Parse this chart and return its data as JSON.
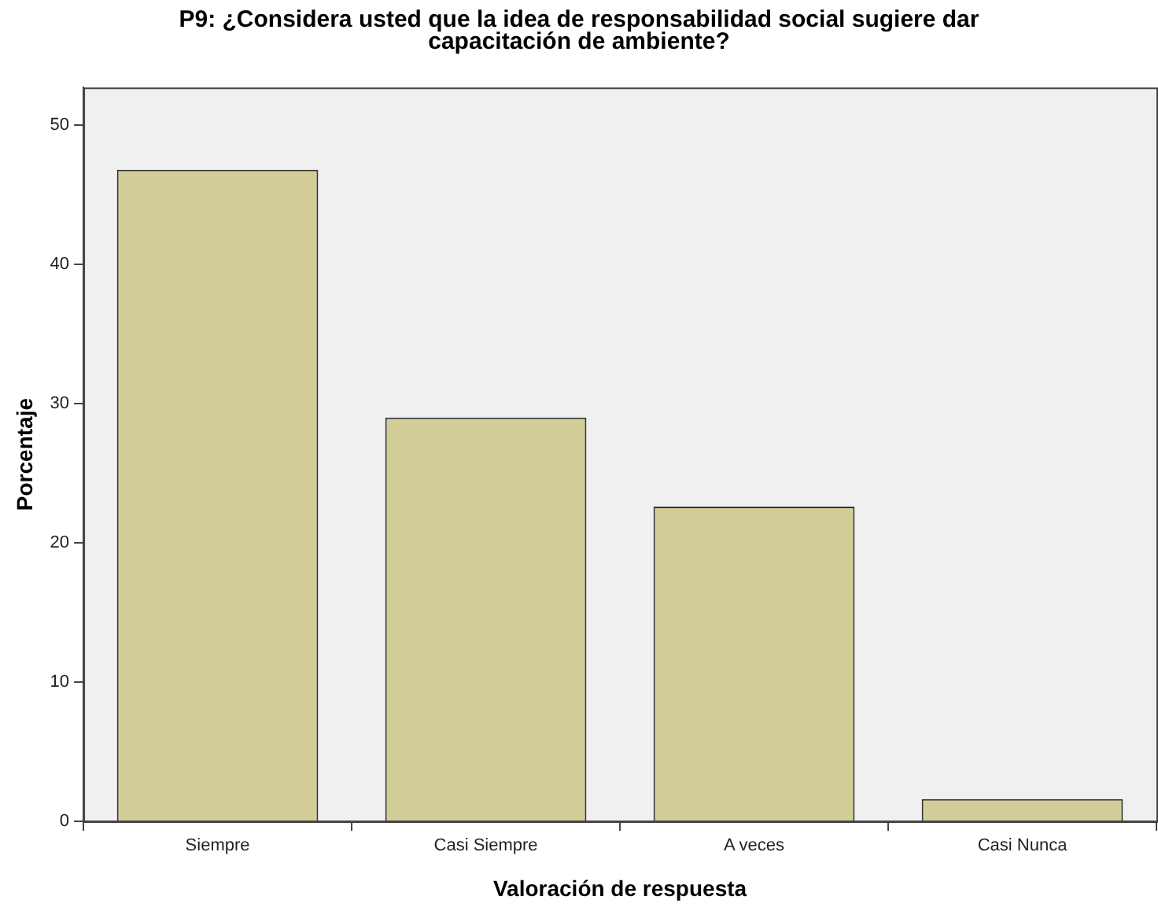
{
  "chart_data": {
    "type": "bar",
    "title": "P9: ¿Considera usted que la idea de responsabilidad social sugiere dar capacitación de ambiente?",
    "xlabel": "Valoración de respuesta",
    "ylabel": "Porcentaje",
    "categories": [
      "Siempre",
      "Casi Siempre",
      "A veces",
      "Casi Nunca"
    ],
    "values": [
      46.8,
      29.0,
      22.6,
      1.6
    ],
    "color": "#d3ce97",
    "ylim": [
      0,
      52.7
    ],
    "yticks": [
      0,
      10,
      20,
      30,
      40,
      50
    ],
    "grid": false,
    "legend": false
  }
}
